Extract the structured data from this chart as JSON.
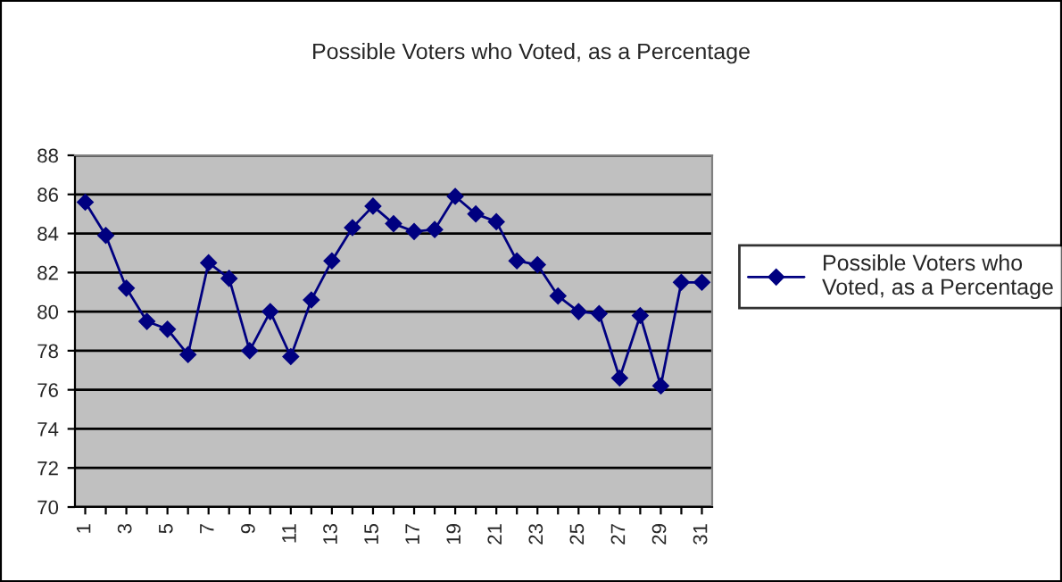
{
  "chart_data": {
    "type": "line",
    "title": "Possible Voters who Voted, as a Percentage",
    "categories": [
      "1",
      null,
      "3",
      null,
      "5",
      null,
      "7",
      null,
      "9",
      null,
      "11",
      null,
      "13",
      null,
      "15",
      null,
      "17",
      null,
      "19",
      null,
      "21",
      null,
      "23",
      null,
      "25",
      null,
      "27",
      null,
      "29",
      null,
      "31"
    ],
    "series": [
      {
        "name": "Possible Voters who Voted, as a Percentage",
        "color": "#000080",
        "values": [
          85.6,
          83.9,
          81.2,
          79.5,
          79.1,
          77.8,
          82.5,
          81.7,
          78.0,
          80.0,
          77.7,
          80.6,
          82.6,
          84.3,
          85.4,
          84.5,
          84.1,
          84.2,
          85.9,
          85.0,
          84.6,
          82.6,
          82.4,
          80.8,
          80.0,
          79.9,
          76.6,
          79.8,
          76.2,
          81.5,
          81.5
        ]
      }
    ],
    "ylim": [
      70,
      88
    ],
    "yticks": [
      70,
      72,
      74,
      76,
      78,
      80,
      82,
      84,
      86,
      88
    ],
    "grid": "y",
    "legend": "right",
    "marker": "diamond",
    "line_style": "solid"
  }
}
